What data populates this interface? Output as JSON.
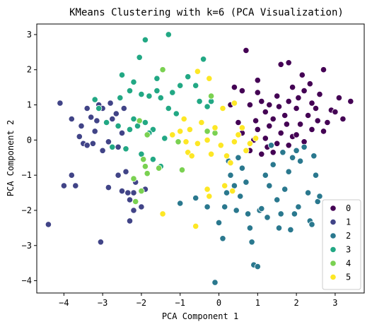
{
  "chart_data": {
    "type": "scatter",
    "title": "KMeans Clustering with k=6 (PCA Visualization)",
    "xlabel": "PCA Component 1",
    "ylabel": "PCA Component 2",
    "xlim": [
      -4.7,
      3.75
    ],
    "ylim": [
      -4.35,
      3.3
    ],
    "xticks": [
      -4,
      -3,
      -2,
      -1,
      0,
      1,
      2,
      3
    ],
    "yticks": [
      -4,
      -3,
      -2,
      -1,
      0,
      1,
      2,
      3
    ],
    "grid": false,
    "legend_position": "bottom-right",
    "series": [
      {
        "name": "0",
        "color": "#440154",
        "points": [
          [
            0.7,
            2.55
          ],
          [
            1.6,
            2.15
          ],
          [
            1.8,
            2.2
          ],
          [
            2.15,
            1.85
          ],
          [
            2.7,
            2.0
          ],
          [
            1.0,
            1.7
          ],
          [
            0.4,
            1.5
          ],
          [
            0.6,
            1.4
          ],
          [
            0.8,
            1.0
          ],
          [
            1.0,
            1.35
          ],
          [
            1.3,
            1.0
          ],
          [
            1.5,
            1.25
          ],
          [
            1.8,
            1.1
          ],
          [
            2.0,
            0.9
          ],
          [
            2.2,
            1.4
          ],
          [
            2.4,
            1.05
          ],
          [
            2.6,
            1.3
          ],
          [
            2.9,
            0.85
          ],
          [
            3.1,
            1.2
          ],
          [
            3.4,
            1.1
          ],
          [
            1.2,
            0.8
          ],
          [
            1.4,
            0.6
          ],
          [
            1.7,
            0.7
          ],
          [
            2.3,
            0.7
          ],
          [
            2.5,
            0.9
          ],
          [
            2.8,
            0.5
          ],
          [
            3.0,
            0.8
          ],
          [
            1.0,
            0.3
          ],
          [
            1.3,
            0.4
          ],
          [
            1.6,
            0.2
          ],
          [
            1.9,
            0.1
          ],
          [
            2.1,
            0.45
          ],
          [
            2.4,
            0.3
          ],
          [
            2.7,
            0.25
          ],
          [
            0.9,
            0.0
          ],
          [
            1.2,
            0.05
          ],
          [
            1.5,
            -0.1
          ],
          [
            1.8,
            -0.15
          ],
          [
            2.0,
            0.15
          ],
          [
            2.2,
            -0.05
          ],
          [
            0.8,
            -0.3
          ],
          [
            1.1,
            -0.4
          ],
          [
            1.4,
            -0.35
          ],
          [
            0.5,
            0.5
          ],
          [
            0.6,
            0.2
          ],
          [
            2.35,
            1.6
          ],
          [
            1.9,
            1.5
          ],
          [
            0.3,
            1.0
          ],
          [
            1.1,
            1.1
          ],
          [
            1.55,
            0.95
          ],
          [
            2.05,
            1.2
          ],
          [
            2.55,
            0.55
          ],
          [
            1.25,
            -0.2
          ],
          [
            3.2,
            0.6
          ],
          [
            1.75,
            0.45
          ],
          [
            0.95,
            0.55
          ]
        ]
      },
      {
        "name": "1",
        "color": "#414487",
        "points": [
          [
            -4.4,
            -2.4
          ],
          [
            -4.1,
            1.05
          ],
          [
            -3.8,
            0.6
          ],
          [
            -3.6,
            0.1
          ],
          [
            -3.4,
            0.9
          ],
          [
            -3.3,
            0.65
          ],
          [
            -3.1,
            1.0
          ],
          [
            -3.0,
            0.9
          ],
          [
            -2.9,
            0.5
          ],
          [
            -2.8,
            1.05
          ],
          [
            -2.75,
            0.6
          ],
          [
            -3.55,
            0.4
          ],
          [
            -3.2,
            0.25
          ],
          [
            -3.5,
            -0.1
          ],
          [
            -3.25,
            -0.1
          ],
          [
            -3.0,
            -0.3
          ],
          [
            -2.85,
            -0.05
          ],
          [
            -3.4,
            -0.15
          ],
          [
            -4.0,
            -1.3
          ],
          [
            -3.8,
            -1.0
          ],
          [
            -3.7,
            -1.3
          ],
          [
            -3.05,
            -2.9
          ],
          [
            -2.6,
            -1.0
          ],
          [
            -2.4,
            -0.9
          ],
          [
            -2.6,
            -0.2
          ],
          [
            -2.5,
            0.2
          ],
          [
            -2.3,
            -1.7
          ],
          [
            -2.2,
            -1.5
          ],
          [
            -2.15,
            -1.2
          ],
          [
            -2.0,
            -1.9
          ],
          [
            -2.3,
            -2.3
          ],
          [
            -1.9,
            -1.4
          ],
          [
            -2.85,
            -1.35
          ],
          [
            -2.35,
            -1.5
          ],
          [
            -2.45,
            0.9
          ],
          [
            -3.15,
            0.55
          ],
          [
            -2.65,
            0.75
          ],
          [
            -2.2,
            -2.0
          ],
          [
            -2.5,
            -1.45
          ]
        ]
      },
      {
        "name": "2",
        "color": "#2a788e",
        "points": [
          [
            -1.0,
            -1.8
          ],
          [
            -0.6,
            -1.65
          ],
          [
            -0.3,
            -1.9
          ],
          [
            -0.1,
            -4.05
          ],
          [
            0.0,
            -2.35
          ],
          [
            0.1,
            -2.8
          ],
          [
            0.15,
            -1.9
          ],
          [
            0.2,
            -1.5
          ],
          [
            0.3,
            -1.0
          ],
          [
            0.4,
            -1.3
          ],
          [
            0.5,
            -0.5
          ],
          [
            0.6,
            -0.8
          ],
          [
            0.7,
            -1.2
          ],
          [
            0.75,
            -2.1
          ],
          [
            0.8,
            -2.5
          ],
          [
            0.85,
            -2.9
          ],
          [
            0.9,
            -3.55
          ],
          [
            1.0,
            -3.6
          ],
          [
            1.05,
            -2.0
          ],
          [
            1.1,
            -1.95
          ],
          [
            1.2,
            -1.0
          ],
          [
            1.3,
            -1.3
          ],
          [
            1.4,
            -0.7
          ],
          [
            1.5,
            -1.7
          ],
          [
            1.55,
            -2.5
          ],
          [
            1.6,
            -2.1
          ],
          [
            1.7,
            -1.4
          ],
          [
            1.8,
            -0.9
          ],
          [
            1.9,
            -0.5
          ],
          [
            2.0,
            -0.3
          ],
          [
            2.1,
            -0.6
          ],
          [
            2.2,
            -0.2
          ],
          [
            2.3,
            -1.5
          ],
          [
            2.35,
            -2.3
          ],
          [
            2.4,
            -2.4
          ],
          [
            2.5,
            -1.0
          ],
          [
            2.55,
            -1.75
          ],
          [
            2.6,
            -1.6
          ],
          [
            1.85,
            -2.55
          ],
          [
            2.05,
            -1.9
          ],
          [
            0.55,
            -1.6
          ],
          [
            0.25,
            -0.6
          ],
          [
            1.25,
            -2.2
          ],
          [
            1.65,
            -0.35
          ],
          [
            0.45,
            -2.0
          ],
          [
            2.45,
            -0.45
          ],
          [
            1.35,
            -0.15
          ],
          [
            1.95,
            -2.1
          ]
        ]
      },
      {
        "name": "3",
        "color": "#22a884",
        "points": [
          [
            -1.3,
            3.0
          ],
          [
            -1.9,
            2.85
          ],
          [
            -2.05,
            2.35
          ],
          [
            -2.5,
            1.85
          ],
          [
            -2.2,
            1.65
          ],
          [
            -2.0,
            1.3
          ],
          [
            -1.8,
            1.25
          ],
          [
            -1.6,
            1.4
          ],
          [
            -1.5,
            1.2
          ],
          [
            -1.3,
            0.9
          ],
          [
            -1.2,
            1.35
          ],
          [
            -1.1,
            0.75
          ],
          [
            -1.0,
            1.55
          ],
          [
            -0.8,
            1.8
          ],
          [
            -0.6,
            1.55
          ],
          [
            -0.4,
            2.3
          ],
          [
            -0.5,
            1.1
          ],
          [
            -0.3,
            0.95
          ],
          [
            -3.2,
            1.15
          ],
          [
            -3.1,
            0.9
          ],
          [
            -2.9,
            0.5
          ],
          [
            -2.6,
            0.4
          ],
          [
            -2.3,
            0.3
          ],
          [
            -2.2,
            0.6
          ],
          [
            -2.1,
            0.4
          ],
          [
            -1.9,
            0.5
          ],
          [
            -1.7,
            0.3
          ],
          [
            -1.4,
            0.05
          ],
          [
            -1.8,
            0.2
          ],
          [
            -2.75,
            -0.2
          ],
          [
            -2.4,
            -0.25
          ],
          [
            -2.0,
            -0.4
          ],
          [
            -1.7,
            -0.55
          ],
          [
            -1.5,
            -0.75
          ],
          [
            -1.6,
            1.75
          ],
          [
            -2.3,
            1.4
          ],
          [
            -0.2,
            1.1
          ],
          [
            -2.55,
            1.2
          ]
        ]
      },
      {
        "name": "4",
        "color": "#7ad151",
        "points": [
          [
            -1.45,
            2.0
          ],
          [
            -1.85,
            0.15
          ],
          [
            -1.95,
            -0.55
          ],
          [
            -1.9,
            -0.75
          ],
          [
            -2.2,
            -1.1
          ],
          [
            -2.0,
            -1.45
          ],
          [
            -2.15,
            -1.75
          ],
          [
            -1.85,
            -0.95
          ],
          [
            -0.3,
            0.25
          ],
          [
            -0.2,
            1.25
          ],
          [
            -0.1,
            0.2
          ],
          [
            -1.05,
            -0.05
          ],
          [
            -0.95,
            -0.85
          ],
          [
            -1.55,
            -0.8
          ],
          [
            -2.05,
            0.55
          ]
        ]
      },
      {
        "name": "5",
        "color": "#fde725",
        "points": [
          [
            -0.55,
            1.95
          ],
          [
            -0.25,
            1.75
          ],
          [
            0.1,
            0.9
          ],
          [
            0.4,
            1.05
          ],
          [
            -0.45,
            0.5
          ],
          [
            -0.3,
            0.0
          ],
          [
            -0.1,
            0.35
          ],
          [
            0.05,
            -0.15
          ],
          [
            0.2,
            -0.45
          ],
          [
            0.4,
            -0.05
          ],
          [
            0.5,
            0.15
          ],
          [
            0.6,
            0.35
          ],
          [
            0.7,
            -0.3
          ],
          [
            0.3,
            -0.65
          ],
          [
            -0.2,
            -0.4
          ],
          [
            -0.55,
            -0.1
          ],
          [
            -0.75,
            0.3
          ],
          [
            -0.85,
            -0.05
          ],
          [
            -0.8,
            -0.35
          ],
          [
            -0.7,
            -0.45
          ],
          [
            -0.9,
            0.6
          ],
          [
            -1.0,
            0.25
          ],
          [
            -1.2,
            0.15
          ],
          [
            -0.3,
            -1.4
          ],
          [
            -0.25,
            -1.6
          ],
          [
            -0.6,
            -2.45
          ],
          [
            -1.45,
            -2.1
          ],
          [
            0.15,
            -1.3
          ],
          [
            0.35,
            -1.45
          ],
          [
            0.8,
            -0.1
          ],
          [
            0.95,
            0.05
          ]
        ]
      }
    ]
  }
}
